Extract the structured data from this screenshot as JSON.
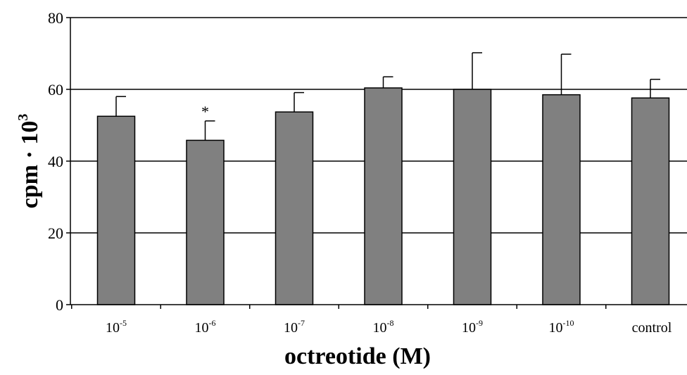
{
  "chart_data": {
    "type": "bar",
    "categories": [
      {
        "base": "10",
        "exp": "-5"
      },
      {
        "base": "10",
        "exp": "-6"
      },
      {
        "base": "10",
        "exp": "-7"
      },
      {
        "base": "10",
        "exp": "-8"
      },
      {
        "base": "10",
        "exp": "-9"
      },
      {
        "base": "10",
        "exp": "-10"
      },
      {
        "base": "control",
        "exp": ""
      }
    ],
    "values": [
      52.5,
      45.8,
      53.7,
      60.4,
      60.0,
      58.5,
      57.6
    ],
    "errors": [
      5.5,
      5.4,
      5.4,
      3.1,
      10.2,
      11.3,
      5.2
    ],
    "annotations": [
      "",
      "*",
      "",
      "",
      "",
      "",
      ""
    ],
    "ylim": [
      0,
      80
    ],
    "yticks": [
      "0",
      "20",
      "40",
      "60",
      "80"
    ],
    "ytick_values": [
      0,
      20,
      40,
      60,
      80
    ],
    "gridlines": [
      20,
      40,
      60,
      80
    ],
    "xlabel": "octreotide (M)",
    "ylabel": {
      "base": "cpm · 10",
      "exp": "3"
    },
    "bar_color": "#808080",
    "grid": true
  }
}
